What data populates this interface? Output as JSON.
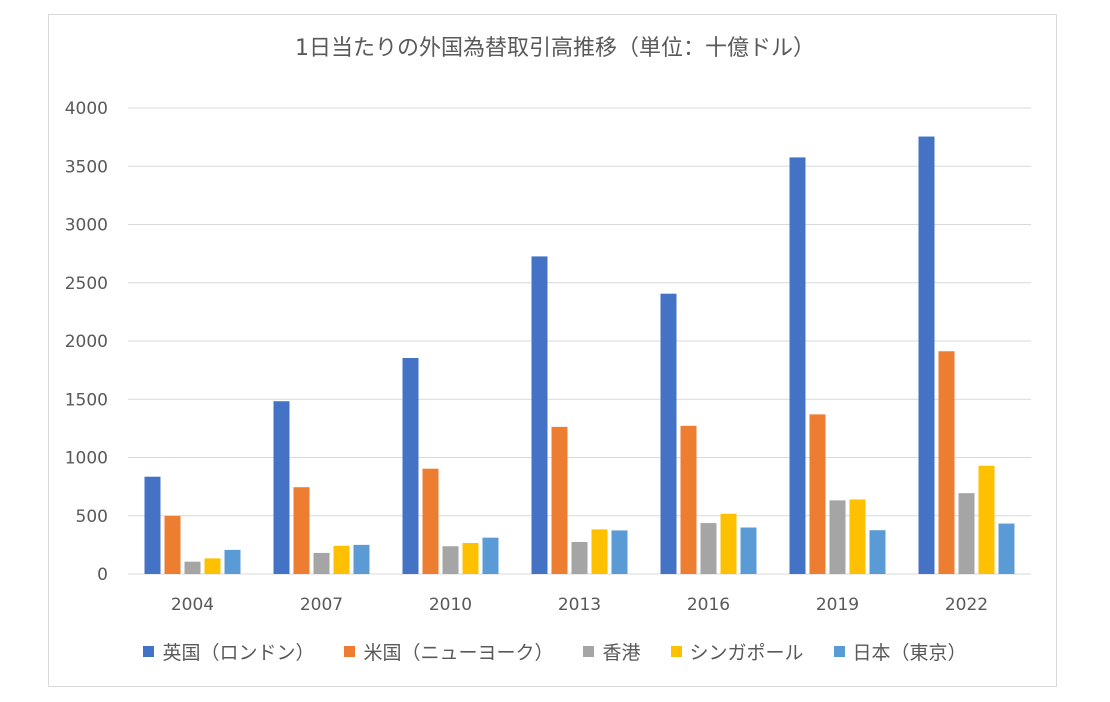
{
  "chart_data": {
    "type": "bar",
    "title": "1日当たりの外国為替取引高推移（単位：十億ドル）",
    "categories": [
      "2004",
      "2007",
      "2010",
      "2013",
      "2016",
      "2019",
      "2022"
    ],
    "ylim": [
      0,
      4000
    ],
    "yticks": [
      0,
      500,
      1000,
      1500,
      2000,
      2500,
      3000,
      3500,
      4000
    ],
    "grid": true,
    "legend_position": "bottom",
    "series": [
      {
        "name": "英国（ロンドン）",
        "color": "#4472c4",
        "values": [
          835,
          1483,
          1854,
          2726,
          2406,
          3576,
          3755
        ]
      },
      {
        "name": "米国（ニューヨーク）",
        "color": "#ed7d31",
        "values": [
          499,
          745,
          904,
          1263,
          1272,
          1370,
          1912
        ]
      },
      {
        "name": "香港",
        "color": "#a5a5a5",
        "values": [
          106,
          181,
          238,
          275,
          437,
          632,
          694
        ]
      },
      {
        "name": "シンガポール",
        "color": "#ffc000",
        "values": [
          134,
          242,
          266,
          383,
          517,
          640,
          929
        ]
      },
      {
        "name": "日本（東京）",
        "color": "#5b9bd5",
        "values": [
          207,
          250,
          312,
          374,
          399,
          376,
          433
        ]
      }
    ]
  }
}
